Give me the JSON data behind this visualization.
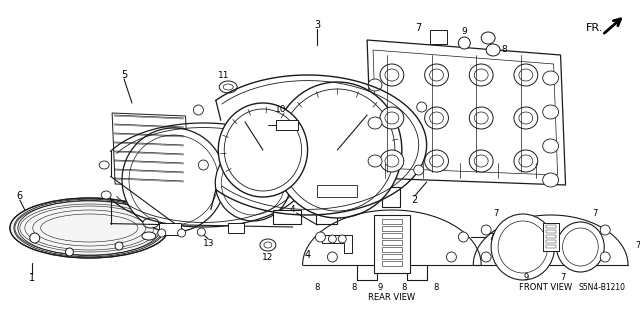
{
  "bg_color": "#ffffff",
  "line_color": "#1a1a1a",
  "fig_width": 6.4,
  "fig_height": 3.19,
  "dpi": 100,
  "fr_label": "FR.",
  "diagram_code": "S5N4-B1210",
  "rear_view_label": "REAR VIEW",
  "front_view_label": "FRONT VIEW"
}
